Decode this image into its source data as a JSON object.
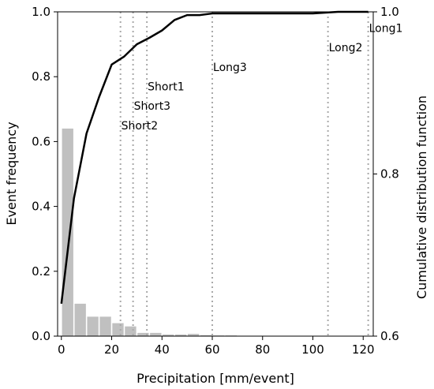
{
  "chart_data": {
    "type": "bar",
    "xlabel": "Precipitation [mm/event]",
    "ylabel": "Event frequency",
    "ylabel_right": "Cumulative distribution function",
    "xlim": [
      -1.5,
      124
    ],
    "ylim": [
      0,
      1.0
    ],
    "ylim_right": [
      0.6,
      1.0
    ],
    "x_ticks": [
      0,
      20,
      40,
      60,
      80,
      100,
      120
    ],
    "y_ticks": [
      0.0,
      0.2,
      0.4,
      0.6,
      0.8,
      1.0
    ],
    "y_ticks_right": [
      0.6,
      0.8,
      1.0
    ],
    "x_tick_labels": [
      "0",
      "20",
      "40",
      "60",
      "80",
      "100",
      "120"
    ],
    "y_tick_labels": [
      "0.0",
      "0.2",
      "0.4",
      "0.6",
      "0.8",
      "1.0"
    ],
    "y_tick_labels_right": [
      "0.6",
      "0.8",
      "1.0"
    ],
    "grid": false,
    "bar_color": "#c0c0c0",
    "line_color": "#000000",
    "vline_color": "#a9a9a9",
    "histogram": {
      "bin_width": 5,
      "bin_starts": [
        0,
        5,
        10,
        15,
        20,
        25,
        30,
        35,
        40,
        45,
        50,
        55,
        60,
        65,
        70,
        75,
        80,
        85,
        90,
        95,
        100,
        105,
        110,
        115,
        120
      ],
      "frequencies": [
        0.64,
        0.1,
        0.06,
        0.06,
        0.04,
        0.03,
        0.01,
        0.01,
        0.005,
        0.005,
        0.007,
        0.003,
        0.002,
        0.002,
        0.001,
        0.001,
        0.001,
        0.001,
        0.001,
        0.001,
        0.001,
        0.001,
        0.001,
        0.001,
        0.001
      ]
    },
    "cdf": {
      "x": [
        0,
        5,
        10,
        15,
        20,
        25,
        30,
        35,
        40,
        45,
        50,
        55,
        60,
        65,
        70,
        75,
        80,
        85,
        90,
        95,
        100,
        105,
        110,
        115,
        120,
        122
      ],
      "y": [
        0.64,
        0.77,
        0.85,
        0.895,
        0.935,
        0.945,
        0.96,
        0.968,
        0.977,
        0.99,
        0.996,
        0.996,
        0.998,
        0.998,
        0.998,
        0.998,
        0.998,
        0.998,
        0.998,
        0.998,
        0.998,
        0.999,
        1.0,
        1.0,
        1.0,
        1.0
      ]
    },
    "annotations": [
      {
        "label": "Short2",
        "x": 23.5,
        "label_y": 0.638
      },
      {
        "label": "Short3",
        "x": 28.5,
        "label_y": 0.698
      },
      {
        "label": "Short1",
        "x": 34,
        "label_y": 0.758
      },
      {
        "label": "Long3",
        "x": 60,
        "label_y": 0.818
      },
      {
        "label": "Long2",
        "x": 106,
        "label_y": 0.878
      },
      {
        "label": "Long1",
        "x": 122,
        "label_y": 0.938
      }
    ]
  }
}
